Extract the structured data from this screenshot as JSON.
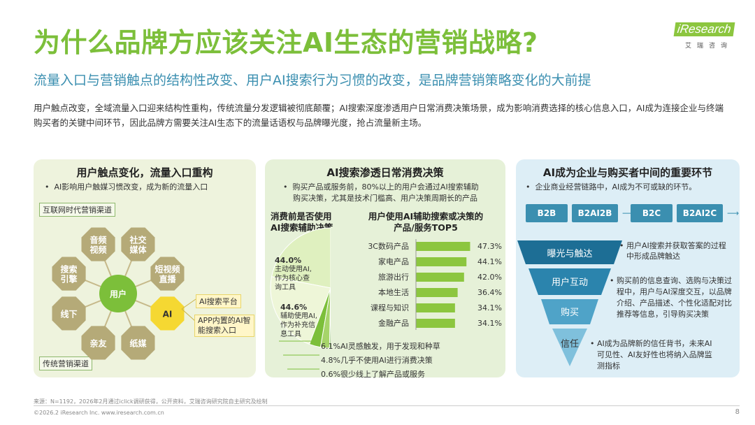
{
  "header": {
    "title": "为什么品牌方应该关注AI生态的营销战略?",
    "subtitle": "流量入口与营销触点的结构性改变、用户AI搜索行为习惯的改变，是品牌营销策略变化的大前提",
    "intro": "用户触点改变，全域流量入口迎来结构性重构，传统流量分发逻辑被彻底颠覆；AI搜索深度渗透用户日常消费决策场景，成为影响消费选择的核心信息入口，AI成为连接企业与终端购买者的关键中间环节，因此品牌方需要关注AI生态下的流量话语权与品牌曝光度，抢占流量新主场。",
    "logo_brand": "iResearch",
    "logo_cn": "艾瑞咨询"
  },
  "panel1": {
    "title": "用户触点变化，流量入口重构",
    "bullet": "AI影响用户触媒习惯改变，成为新的流量入口",
    "internet_label": "互联网时代营销渠道",
    "traditional_label": "传统营销渠道",
    "center": "用户",
    "nodes": [
      "音频视频",
      "社交媒体",
      "短视频直播",
      "AI",
      "纸媒",
      "亲友",
      "线下",
      "搜索引擎"
    ],
    "node_lines": [
      [
        "音频",
        "视频"
      ],
      [
        "社交",
        "媒体"
      ],
      [
        "短视频",
        "直播"
      ],
      [
        "AI"
      ],
      [
        "纸媒"
      ],
      [
        "亲友"
      ],
      [
        "线下"
      ],
      [
        "搜索",
        "引擎"
      ]
    ],
    "ai_tags": [
      "AI搜索平台",
      "APP内置的AI智能搜索入口"
    ],
    "ai_tag2_lines": [
      "APP内置的AI智",
      "能搜索入口"
    ]
  },
  "panel2": {
    "title": "AI搜索渗透日常消费决策",
    "bullet_lines": [
      "购买产品或服务前，80%以上的用户会通过AI搜索辅助",
      "购买决策，尤其是技术门槛高、用户决策周期长的产品"
    ],
    "left_chart_title_lines": [
      "消费前是否使用",
      "AI搜索辅助决策"
    ],
    "right_chart_title_lines": [
      "用户使用AI辅助搜索或决策的",
      "产品/服务TOP5"
    ],
    "pie_labels": {
      "main_pct": "44.0%",
      "main_lines": [
        "主动使用AI,",
        "作为核心查",
        "询工具"
      ],
      "assist_pct": "44.6%",
      "assist_lines": [
        "辅助使用AI,",
        "作为补充信",
        "息工具"
      ],
      "others": [
        "6.1%AI灵感触发，用于发现和种草",
        "4.8%几乎不使用AI进行消费决策",
        "0.6%很少线上了解产品或服务"
      ]
    }
  },
  "panel3": {
    "title": "AI成为企业与购买者中间的重要环节",
    "bullet": "企业商业经营链路中，AI成为不可或缺的环节。",
    "chain": [
      "B2B",
      "B2AI2B",
      "B2C",
      "B2AI2C"
    ],
    "funnel": [
      "曝光与触达",
      "用户互动",
      "购买",
      "信任"
    ],
    "notes": [
      [
        "用户AI搜索并获取答案的过程",
        "中形成品牌触达"
      ],
      [
        "购买前的信息查询、选购与决策过",
        "程中，用户与AI深度交互，以品牌",
        "介绍、产品描述、个性化适配对比",
        "推荐等信息，引导购买决策"
      ],
      [
        "AI成为品牌新的信任背书，未来AI",
        "可见性、AI友好性也将纳入品牌监",
        "测指标"
      ]
    ]
  },
  "footer": {
    "source": "来源：N=1192，2026年2月通过iclick调研获得，公开资料，艾瑞咨询研究院自主研究及绘制",
    "copyright": "©2026.2 iResearch Inc. www.iresearch.com.cn",
    "page": "8"
  },
  "colors": {
    "green": "#7cbf3a",
    "blue": "#3b8fb0",
    "bar": "#8cc63f",
    "node": "#b5aa78",
    "center": "#7cbf3a",
    "ai": "#f5d832"
  },
  "chart_data": [
    {
      "type": "pie",
      "title": "消费前是否使用AI搜索辅助决策",
      "categories": [
        "主动使用AI，作为核心查询工具",
        "辅助使用AI，作为补充信息工具",
        "AI灵感触发，用于发现和种草",
        "几乎不使用AI进行消费决策",
        "很少线上了解产品或服务"
      ],
      "values": [
        44.0,
        44.6,
        6.1,
        4.8,
        0.6
      ]
    },
    {
      "type": "bar",
      "title": "用户使用AI辅助搜索或决策的产品/服务TOP5",
      "categories": [
        "3C数码产品",
        "家电产品",
        "旅游出行",
        "本地生活",
        "课程与知识",
        "金融产品"
      ],
      "values": [
        47.3,
        44.1,
        42.0,
        36.4,
        34.1,
        34.1
      ],
      "labels": [
        "47.3%",
        "44.1%",
        "42.0%",
        "36.4%",
        "34.1%",
        "34.1%"
      ],
      "xlim": [
        0,
        50
      ]
    }
  ]
}
